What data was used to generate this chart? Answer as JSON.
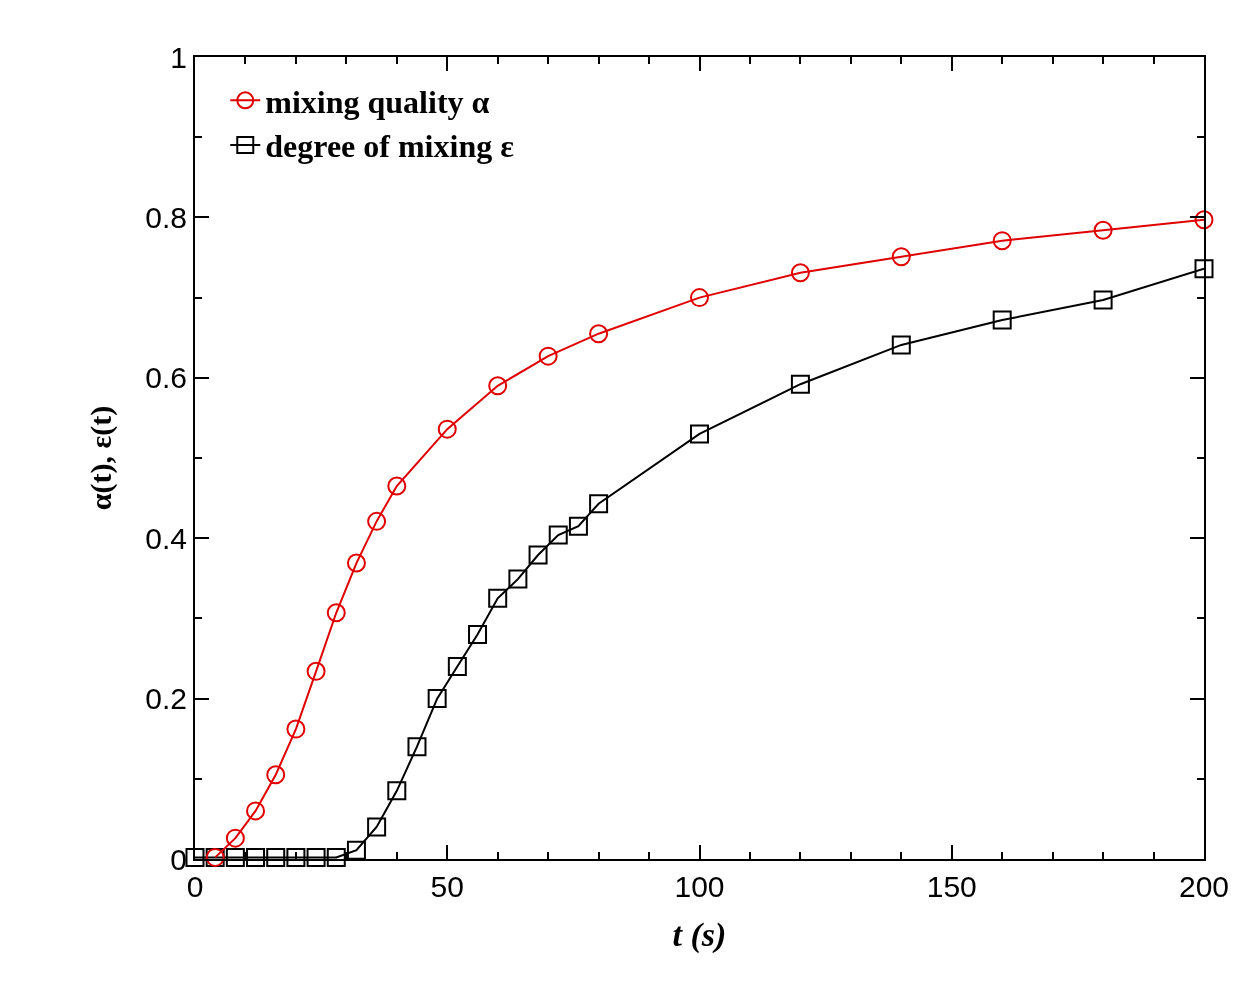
{
  "chart_data": {
    "type": "line",
    "xlabel": "t (s)",
    "ylabel": "α(t), ε(t)",
    "xlim": [
      0,
      200
    ],
    "xticks": [
      0,
      50,
      100,
      150,
      200
    ],
    "ylim": [
      0,
      1
    ],
    "yticks": [
      0,
      0.2,
      0.4,
      0.6,
      0.8,
      1
    ],
    "grid": false,
    "legend": "top left",
    "line_style": "solid",
    "series": [
      {
        "name": "mixing quality α",
        "color": "#e00000",
        "marker": "circle",
        "x": [
          4,
          8,
          12,
          16,
          20,
          24,
          28,
          32,
          36,
          40,
          50,
          60,
          70,
          80,
          100,
          120,
          140,
          160,
          180,
          200
        ],
        "values": [
          0.002,
          0.026,
          0.06,
          0.105,
          0.162,
          0.234,
          0.307,
          0.369,
          0.421,
          0.465,
          0.536,
          0.59,
          0.627,
          0.655,
          0.7,
          0.731,
          0.751,
          0.771,
          0.784,
          0.797
        ]
      },
      {
        "name": "degree of mixing ε",
        "color": "#000000",
        "marker": "square",
        "x": [
          0,
          4,
          8,
          12,
          16,
          20,
          24,
          28,
          32,
          36,
          40,
          44,
          48,
          52,
          56,
          60,
          64,
          68,
          72,
          76,
          80,
          100,
          120,
          140,
          160,
          180,
          200
        ],
        "values": [
          0.002,
          0.002,
          0.002,
          0.002,
          0.002,
          0.002,
          0.002,
          0.002,
          0.011,
          0.04,
          0.085,
          0.14,
          0.2,
          0.24,
          0.28,
          0.325,
          0.349,
          0.379,
          0.404,
          0.415,
          0.443,
          0.53,
          0.592,
          0.641,
          0.672,
          0.697,
          0.736
        ]
      }
    ]
  }
}
